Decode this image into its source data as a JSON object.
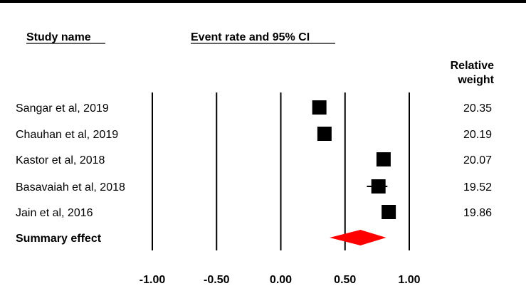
{
  "headers": {
    "study_name": "Study name",
    "effect": "Event rate and 95% CI",
    "weight_line1": "Relative",
    "weight_line2": "weight"
  },
  "colors": {
    "study_marker": "#000000",
    "summary_marker": "#ff0000",
    "axis": "#000000",
    "background": "#ffffff"
  },
  "chart_data": {
    "type": "forest",
    "x_axis": {
      "ticks": [
        -1.0,
        -0.5,
        0.0,
        0.5,
        1.0
      ],
      "tick_labels": [
        "-1.00",
        "-0.50",
        "0.00",
        "0.50",
        "1.00"
      ],
      "range": [
        -1.0,
        1.0
      ]
    },
    "studies": [
      {
        "name": "Sangar et al, 2019",
        "event_rate": 0.3,
        "ci": [
          0.28,
          0.32
        ],
        "weight": "20.35"
      },
      {
        "name": "Chauhan et al, 2019",
        "event_rate": 0.34,
        "ci": [
          0.32,
          0.36
        ],
        "weight": "20.19"
      },
      {
        "name": "Kastor et al, 2018",
        "event_rate": 0.8,
        "ci": [
          0.78,
          0.82
        ],
        "weight": "20.07"
      },
      {
        "name": "Basavaiah et al, 2018",
        "event_rate": 0.76,
        "ci": [
          0.67,
          0.83
        ],
        "weight": "19.52"
      },
      {
        "name": "Jain et al, 2016",
        "event_rate": 0.84,
        "ci": [
          0.82,
          0.86
        ],
        "weight": "19.86"
      }
    ],
    "summary": {
      "name": "Summary effect",
      "event_rate": 0.62,
      "ci": [
        0.38,
        0.82
      ]
    }
  }
}
